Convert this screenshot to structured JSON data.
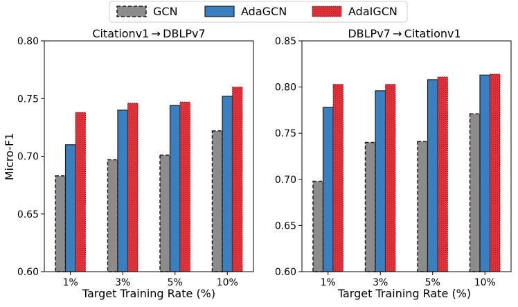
{
  "legend": [
    {
      "name": "GCN",
      "color": "#8c8c8c"
    },
    {
      "name": "AdaGCN",
      "color": "#3a7fc0"
    },
    {
      "name": "AdaIGCN",
      "color": "#e0333a"
    }
  ],
  "colors": {
    "gcn_fill": "#8c8c8c",
    "adagcn_fill": "#3a7fc0",
    "adaigcn_fill": "#e0333a",
    "edge": "#1a1a1a"
  },
  "chart_data": [
    {
      "type": "bar",
      "title": "Citationv1 → DBLPv7",
      "xlabel": "Target Training Rate (%)",
      "ylabel": "Micro-F1",
      "ylim": [
        0.6,
        0.8
      ],
      "yticks": [
        "0.60",
        "0.65",
        "0.70",
        "0.75",
        "0.80"
      ],
      "categories": [
        "1%",
        "3%",
        "5%",
        "10%"
      ],
      "series": [
        {
          "name": "GCN",
          "values": [
            0.683,
            0.697,
            0.701,
            0.722
          ]
        },
        {
          "name": "AdaGCN",
          "values": [
            0.71,
            0.74,
            0.744,
            0.752
          ]
        },
        {
          "name": "AdaIGCN",
          "values": [
            0.738,
            0.746,
            0.747,
            0.76
          ]
        }
      ]
    },
    {
      "type": "bar",
      "title": "DBLPv7 → Citationv1",
      "xlabel": "Target Training Rate (%)",
      "ylabel": "",
      "ylim": [
        0.6,
        0.85
      ],
      "yticks": [
        "0.60",
        "0.65",
        "0.70",
        "0.75",
        "0.80",
        "0.85"
      ],
      "categories": [
        "1%",
        "3%",
        "5%",
        "10%"
      ],
      "series": [
        {
          "name": "GCN",
          "values": [
            0.698,
            0.74,
            0.741,
            0.771
          ]
        },
        {
          "name": "AdaGCN",
          "values": [
            0.778,
            0.796,
            0.808,
            0.813
          ]
        },
        {
          "name": "AdaIGCN",
          "values": [
            0.803,
            0.803,
            0.811,
            0.814
          ]
        }
      ]
    }
  ]
}
